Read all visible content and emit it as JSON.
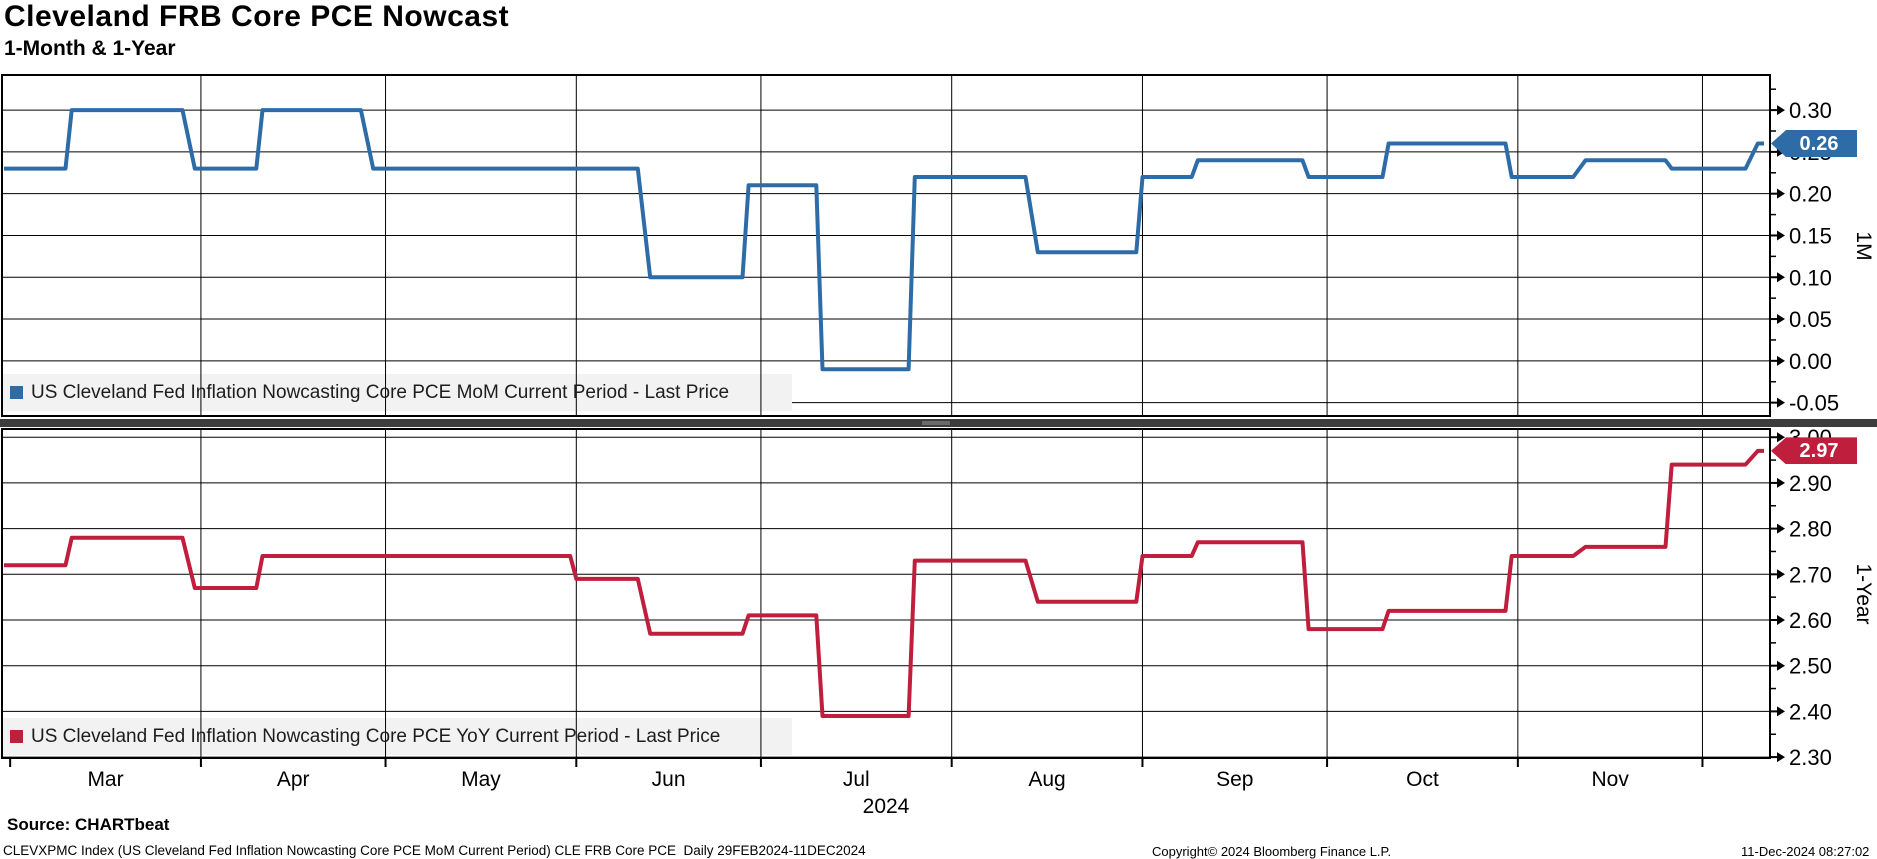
{
  "header": {
    "title": "Cleveland FRB Core PCE Nowcast",
    "subtitle": "1-Month & 1-Year"
  },
  "x_axis": {
    "start_date": "2024-02-29",
    "end_date": "2024-12-11",
    "month_labels": [
      "Mar",
      "Apr",
      "May",
      "Jun",
      "Jul",
      "Aug",
      "Sep",
      "Oct",
      "Nov"
    ],
    "year_label": "2024"
  },
  "chart_data": [
    {
      "type": "line",
      "panel": "top",
      "axis_title": "1M",
      "legend_label": "US Cleveland Fed Inflation Nowcasting Core PCE MoM Current Period - Last Price",
      "line_color": "#2d6ca7",
      "label_box_color": "#2d6ca7",
      "last_price_label": "0.26",
      "ylim": [
        -0.066,
        0.342
      ],
      "yticks": [
        "0.30",
        "0.25",
        "0.20",
        "0.15",
        "0.10",
        "0.05",
        "0.00",
        "-0.05"
      ],
      "minor_tick_step": 0.025,
      "grid": true,
      "legend_position": "bottom-left",
      "segments_units": "[start_day_offset_from_2024-02-29, end_day_offset, value]",
      "segments": [
        [
          0,
          10,
          0.23
        ],
        [
          11,
          29,
          0.3
        ],
        [
          31,
          41,
          0.23
        ],
        [
          42,
          58,
          0.3
        ],
        [
          60,
          103,
          0.23
        ],
        [
          105,
          120,
          0.1
        ],
        [
          121,
          132,
          0.21
        ],
        [
          133,
          147,
          -0.01
        ],
        [
          148,
          166,
          0.22
        ],
        [
          168,
          184,
          0.13
        ],
        [
          185,
          193,
          0.22
        ],
        [
          194,
          211,
          0.24
        ],
        [
          212,
          224,
          0.22
        ],
        [
          225,
          244,
          0.26
        ],
        [
          245,
          255,
          0.22
        ],
        [
          257,
          270,
          0.24
        ],
        [
          271,
          283,
          0.23
        ],
        [
          285,
          286,
          0.26
        ]
      ]
    },
    {
      "type": "line",
      "panel": "bottom",
      "axis_title": "1-Year",
      "legend_label": "US Cleveland Fed Inflation Nowcasting Core PCE YoY Current Period - Last Price",
      "line_color": "#bf1e3c",
      "label_box_color": "#bf1e3c",
      "last_price_label": "2.97",
      "ylim": [
        2.298,
        3.018
      ],
      "yticks": [
        "3.00",
        "2.90",
        "2.80",
        "2.70",
        "2.60",
        "2.50",
        "2.40",
        "2.30"
      ],
      "minor_tick_step": 0.05,
      "grid": true,
      "legend_position": "bottom-left",
      "segments_units": "[start_day_offset_from_2024-02-29, end_day_offset, value]",
      "segments": [
        [
          0,
          10,
          2.72
        ],
        [
          11,
          29,
          2.78
        ],
        [
          31,
          41,
          2.67
        ],
        [
          42,
          92,
          2.74
        ],
        [
          93,
          103,
          2.69
        ],
        [
          105,
          120,
          2.57
        ],
        [
          121,
          132,
          2.61
        ],
        [
          133,
          147,
          2.39
        ],
        [
          148,
          166,
          2.73
        ],
        [
          168,
          184,
          2.64
        ],
        [
          185,
          193,
          2.74
        ],
        [
          194,
          211,
          2.77
        ],
        [
          212,
          224,
          2.58
        ],
        [
          225,
          244,
          2.62
        ],
        [
          245,
          255,
          2.74
        ],
        [
          257,
          270,
          2.76
        ],
        [
          271,
          283,
          2.94
        ],
        [
          285,
          286,
          2.97
        ]
      ]
    }
  ],
  "footer": {
    "source": "Source: CHARTbeat",
    "description": "CLEVXPMC Index (US Cleveland Fed Inflation Nowcasting Core PCE MoM Current Period) CLE FRB Core PCE  Daily 29FEB2024-11DEC2024",
    "copyright": "Copyright© 2024 Bloomberg Finance L.P.",
    "timestamp": "11-Dec-2024 08:27:02"
  }
}
